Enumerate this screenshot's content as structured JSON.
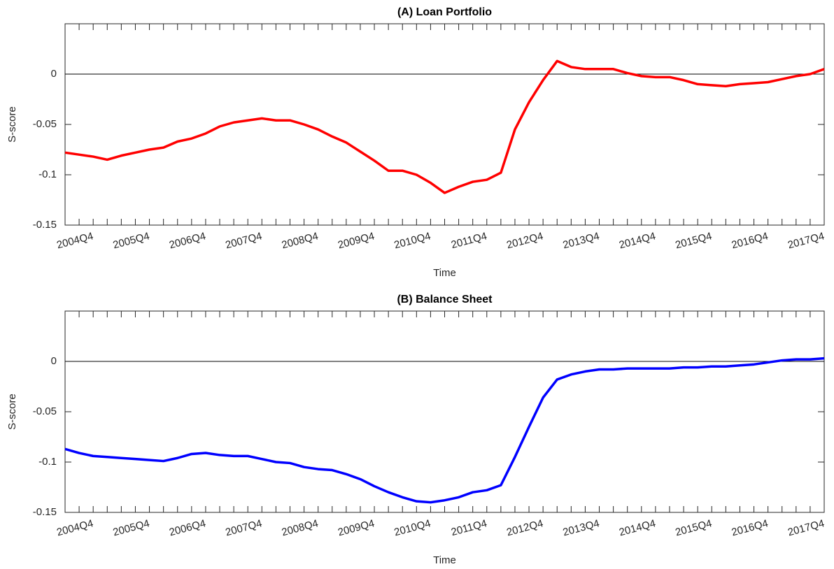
{
  "chart_data": [
    {
      "type": "line",
      "title": "(A) Loan Portfolio",
      "x_label": "Time",
      "y_label": "S-score",
      "categories": [
        null,
        null,
        "2004Q4",
        null,
        null,
        null,
        "2005Q4",
        null,
        null,
        null,
        "2006Q4",
        null,
        null,
        null,
        "2007Q4",
        null,
        null,
        null,
        "2008Q4",
        null,
        null,
        null,
        "2009Q4",
        null,
        null,
        null,
        "2010Q4",
        null,
        null,
        null,
        "2011Q4",
        null,
        null,
        null,
        "2012Q4",
        null,
        null,
        null,
        "2013Q4",
        null,
        null,
        null,
        "2014Q4",
        null,
        null,
        null,
        "2015Q4",
        null,
        null,
        null,
        "2016Q4",
        null,
        null,
        null,
        "2017Q4"
      ],
      "series": [
        {
          "name": "Loan Portfolio",
          "color": "#ff0000",
          "values": [
            -0.078,
            -0.08,
            -0.082,
            -0.085,
            -0.081,
            -0.078,
            -0.075,
            -0.073,
            -0.067,
            -0.064,
            -0.059,
            -0.052,
            -0.048,
            -0.046,
            -0.044,
            -0.046,
            -0.046,
            -0.05,
            -0.055,
            -0.062,
            -0.068,
            -0.077,
            -0.086,
            -0.096,
            -0.096,
            -0.1,
            -0.108,
            -0.118,
            -0.112,
            -0.107,
            -0.105,
            -0.098,
            -0.055,
            -0.028,
            -0.006,
            0.013,
            0.007,
            0.005,
            0.005,
            0.005,
            0.001,
            -0.002,
            -0.003,
            -0.003,
            -0.006,
            -0.01,
            -0.011,
            -0.012,
            -0.01,
            -0.009,
            -0.008,
            -0.005,
            -0.002,
            0,
            0.005
          ]
        }
      ],
      "ylim": [
        -0.15,
        0.05
      ],
      "yticks": [
        -0.15,
        -0.1,
        -0.05,
        0
      ],
      "grid": false
    },
    {
      "type": "line",
      "title": "(B) Balance Sheet",
      "x_label": "Time",
      "y_label": "S-score",
      "categories": [
        null,
        null,
        "2004Q4",
        null,
        null,
        null,
        "2005Q4",
        null,
        null,
        null,
        "2006Q4",
        null,
        null,
        null,
        "2007Q4",
        null,
        null,
        null,
        "2008Q4",
        null,
        null,
        null,
        "2009Q4",
        null,
        null,
        null,
        "2010Q4",
        null,
        null,
        null,
        "2011Q4",
        null,
        null,
        null,
        "2012Q4",
        null,
        null,
        null,
        "2013Q4",
        null,
        null,
        null,
        "2014Q4",
        null,
        null,
        null,
        "2015Q4",
        null,
        null,
        null,
        "2016Q4",
        null,
        null,
        null,
        "2017Q4"
      ],
      "series": [
        {
          "name": "Balance Sheet",
          "color": "#0000ff",
          "values": [
            -0.087,
            -0.091,
            -0.094,
            -0.095,
            -0.096,
            -0.097,
            -0.098,
            -0.099,
            -0.096,
            -0.092,
            -0.091,
            -0.093,
            -0.094,
            -0.094,
            -0.097,
            -0.1,
            -0.101,
            -0.105,
            -0.107,
            -0.108,
            -0.112,
            -0.117,
            -0.124,
            -0.13,
            -0.135,
            -0.139,
            -0.14,
            -0.138,
            -0.135,
            -0.13,
            -0.128,
            -0.123,
            -0.095,
            -0.065,
            -0.036,
            -0.018,
            -0.013,
            -0.01,
            -0.008,
            -0.008,
            -0.007,
            -0.007,
            -0.007,
            -0.007,
            -0.006,
            -0.006,
            -0.005,
            -0.005,
            -0.004,
            -0.003,
            -0.001,
            0.001,
            0.002,
            0.002,
            0.003
          ]
        }
      ],
      "ylim": [
        -0.15,
        0.05
      ],
      "yticks": [
        -0.15,
        -0.1,
        -0.05,
        0
      ],
      "grid": false
    }
  ]
}
